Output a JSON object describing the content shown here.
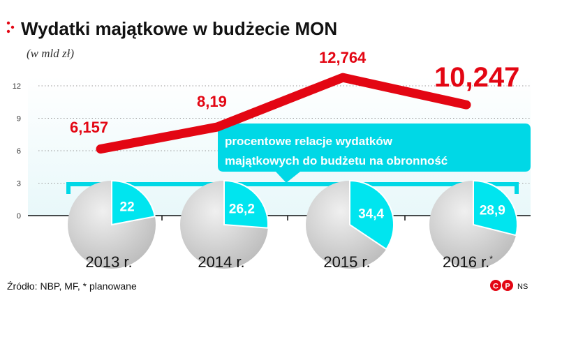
{
  "header": {
    "title": "Wydatki majątkowe w budżecie MON",
    "subtitle": "(w mld zł)"
  },
  "chart_data": {
    "type": "line",
    "title": "Wydatki majątkowe w budżecie MON",
    "subtitle": "(w mld zł)",
    "x": [
      "2013 r.",
      "2014 r.",
      "2015 r.",
      "2016 r.*"
    ],
    "series": [
      {
        "values": [
          6.157,
          8.19,
          12.764,
          10.247
        ],
        "labels": [
          "6,157",
          "8,19",
          "12,764",
          "10,247"
        ]
      }
    ],
    "ylim": [
      0,
      12
    ],
    "yticks": [
      "0",
      "3",
      "6",
      "9",
      "12"
    ],
    "grid": true,
    "line_color": "#e30613",
    "pies": {
      "caption": "procentowe relacje wydatków majątkowych do budżetu na obronność",
      "values": [
        22,
        26.2,
        34.4,
        28.9
      ],
      "labels": [
        "22",
        "26,2",
        "34,4",
        "28,9"
      ],
      "color": "#00e5ef",
      "base_color": "#cfcfcf"
    }
  },
  "footer": {
    "source": "Źródło: NBP, MF, * planowane",
    "credit": "NS"
  }
}
